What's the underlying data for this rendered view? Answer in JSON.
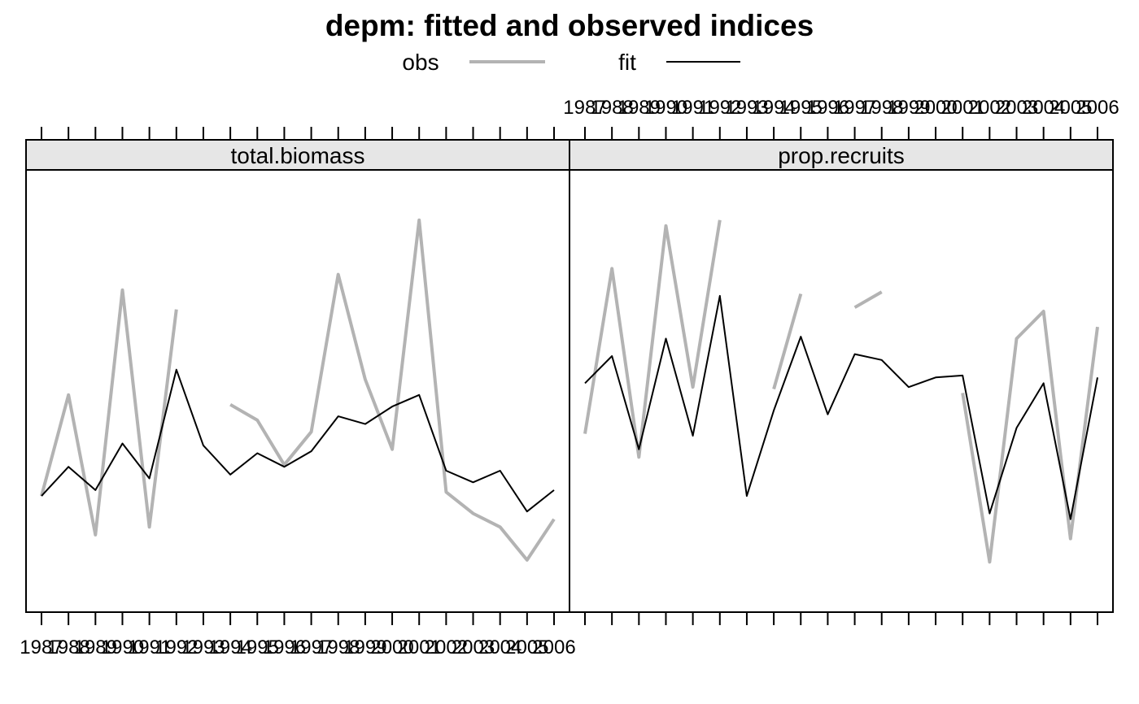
{
  "chart_data": {
    "type": "line",
    "title": "depm: fitted and observed indices",
    "legend": {
      "placement": "top",
      "entries": [
        {
          "label": "obs",
          "color": "#b3b3b3"
        },
        {
          "label": "fit",
          "color": "#000000"
        }
      ]
    },
    "x": [
      1987,
      1988,
      1989,
      1990,
      1991,
      1992,
      1993,
      1994,
      1995,
      1996,
      1997,
      1998,
      1999,
      2000,
      2001,
      2002,
      2003,
      2004,
      2005,
      2006
    ],
    "x_tick_labels": [
      "1987",
      "1988",
      "1989",
      "1990",
      "1991",
      "1992",
      "1993",
      "1994",
      "1995",
      "1996",
      "1997",
      "1998",
      "1999",
      "2000",
      "2001",
      "2002",
      "2003",
      "2004",
      "2005",
      "2006"
    ],
    "grid": false,
    "panels": [
      {
        "strip": "total.biomass",
        "ylim": [
          0,
          1
        ],
        "series": [
          {
            "name": "obs",
            "values": [
              0.23,
              0.49,
              0.13,
              0.76,
              0.15,
              0.71,
              null,
              0.465,
              0.425,
              0.31,
              0.395,
              0.8,
              0.53,
              0.35,
              0.94,
              0.24,
              0.185,
              0.15,
              0.065,
              0.17
            ]
          },
          {
            "name": "fit",
            "values": [
              0.23,
              0.305,
              0.245,
              0.365,
              0.275,
              0.555,
              0.36,
              0.285,
              0.34,
              0.305,
              0.345,
              0.435,
              0.415,
              0.46,
              0.49,
              0.295,
              0.265,
              0.295,
              0.19,
              0.245
            ]
          }
        ]
      },
      {
        "strip": "prop.recruits",
        "ylim": [
          0,
          1
        ],
        "series": [
          {
            "name": "obs",
            "values": [
              0.39,
              0.815,
              0.33,
              0.925,
              0.51,
              0.94,
              null,
              0.505,
              0.75,
              null,
              0.715,
              0.755,
              null,
              null,
              0.495,
              0.06,
              0.635,
              0.705,
              0.12,
              0.665
            ]
          },
          {
            "name": "fit",
            "values": [
              0.52,
              0.59,
              0.35,
              0.635,
              0.385,
              0.745,
              0.23,
              0.45,
              0.64,
              0.44,
              0.595,
              0.58,
              0.51,
              0.535,
              0.54,
              0.185,
              0.405,
              0.52,
              0.17,
              0.535
            ]
          }
        ]
      }
    ]
  }
}
